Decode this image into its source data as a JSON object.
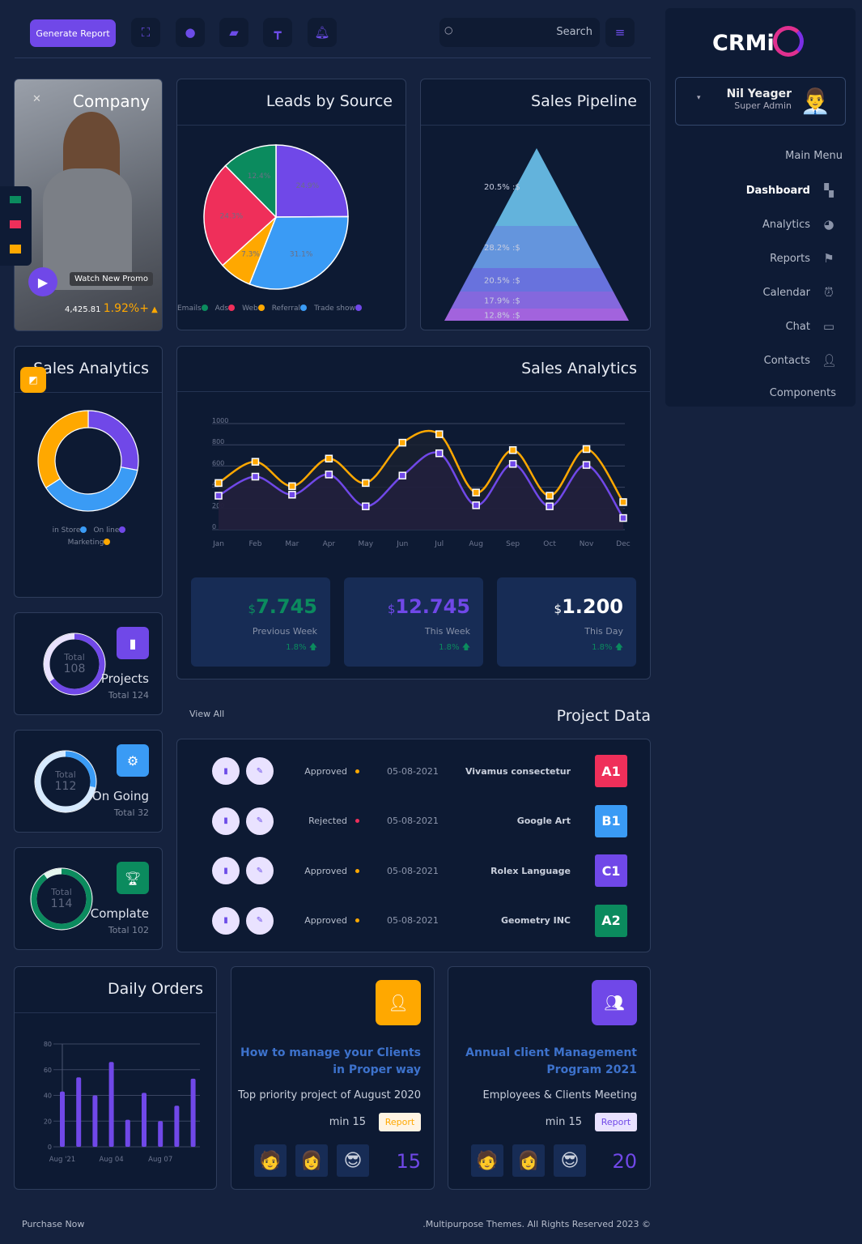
{
  "topbar": {
    "generate_label": "Generate Report",
    "search_placeholder": "Search",
    "icons": [
      "fullscreen-icon",
      "chat-icon",
      "file-icon",
      "layout-icon",
      "bell-icon",
      "menu-icon"
    ]
  },
  "sidebar": {
    "logo": "CRMi",
    "user": {
      "name": "Nil Yeager",
      "role": "Super Admin"
    },
    "section": "Main Menu",
    "items": [
      {
        "label": "Dashboard",
        "icon": "grid-icon",
        "active": true
      },
      {
        "label": "Analytics",
        "icon": "pie-icon"
      },
      {
        "label": "Reports",
        "icon": "flag-icon"
      },
      {
        "label": "Calendar",
        "icon": "alarm-icon"
      },
      {
        "label": "Chat",
        "icon": "message-icon"
      },
      {
        "label": "Contacts",
        "icon": "add-user-icon"
      },
      {
        "label": "Components",
        "icon": ""
      }
    ]
  },
  "promo": {
    "title": "Company",
    "watch_label": "Watch New Promo",
    "value": "4,425.81",
    "change": "1.92%+"
  },
  "leads": {
    "title": "Leads by Source"
  },
  "pipeline": {
    "title": "Sales Pipeline"
  },
  "sales_donut": {
    "title": "Sales Analytics"
  },
  "sales_line": {
    "title": "Sales Analytics"
  },
  "stats": [
    {
      "value": "7.745",
      "currency": "$",
      "label": "Previous Week",
      "change": "1.8%",
      "color": "#0b8b5e"
    },
    {
      "value": "12.745",
      "currency": "$",
      "label": "This Week",
      "change": "1.8%",
      "color": "#7048e8"
    },
    {
      "value": "1.200",
      "currency": "$",
      "label": "This Day",
      "change": "1.8%",
      "color": "#ffffff"
    }
  ],
  "summary": [
    {
      "title": "Projects",
      "total_label": "Total",
      "total": "108",
      "sub": "Total 124",
      "fraction": 0.65,
      "color": "#7048e8",
      "track": "#e9e2ff",
      "icon": "file-icon"
    },
    {
      "title": "On Going",
      "total_label": "Total",
      "total": "112",
      "sub": "Total 32",
      "fraction": 0.28,
      "color": "#3a9bf5",
      "track": "#d6eaff",
      "icon": "gears-icon"
    },
    {
      "title": "Complate",
      "total_label": "Total",
      "total": "114",
      "sub": "Total 102",
      "fraction": 0.9,
      "color": "#0b8b5e",
      "track": "#e5f7ef",
      "icon": "trophy-icon"
    }
  ],
  "project_data": {
    "title": "Project Data",
    "view_all": "View All",
    "rows": [
      {
        "status": "Approved",
        "status_color": "#ffa800",
        "date": "05-08-2021",
        "name": "Vivamus consectetur",
        "code": "A1",
        "color": "#ef2f5a"
      },
      {
        "status": "Rejected",
        "status_color": "#ef2f5a",
        "date": "05-08-2021",
        "name": "Google Art",
        "code": "B1",
        "color": "#3a9bf5"
      },
      {
        "status": "Approved",
        "status_color": "#ffa800",
        "date": "05-08-2021",
        "name": "Rolex Language",
        "code": "C1",
        "color": "#7048e8"
      },
      {
        "status": "Approved",
        "status_color": "#ffa800",
        "date": "05-08-2021",
        "name": "Geometry INC",
        "code": "A2",
        "color": "#0b8b5e"
      }
    ]
  },
  "daily_orders": {
    "title": "Daily Orders"
  },
  "events": [
    {
      "title": "How to manage your Clients in Proper way",
      "desc": "Top priority project of August 2020",
      "time": "min 15",
      "report": "Report",
      "count": "15",
      "color": "#ffa800",
      "icon": "user-icon"
    },
    {
      "title": "Annual client Management Program 2021",
      "desc": "Employees & Clients Meeting",
      "time": "min 15",
      "report": "Report",
      "count": "20",
      "color": "#7048e8",
      "icon": "users-icon"
    }
  ],
  "footer": {
    "left": "Purchase Now",
    "right": ".Multipurpose Themes. All Rights Reserved 2023 ©"
  },
  "chart_data": [
    {
      "type": "pie",
      "title": "Leads by Source",
      "categories": [
        "Trade show",
        "Referral",
        "Web",
        "Ads",
        "Emails"
      ],
      "values": [
        24.9,
        31.1,
        7.3,
        24.3,
        12.4
      ],
      "labels": [
        "24.9%",
        "31.1%",
        "7.3%",
        "24.3%",
        "12.4%"
      ],
      "colors": [
        "#7048e8",
        "#3a9bf5",
        "#ffa800",
        "#ef2f5a",
        "#0b8b5e"
      ],
      "legend": [
        "Emails",
        "Ads",
        "Web",
        "Referral",
        "Trade show"
      ],
      "legend_colors": [
        "#0b8b5e",
        "#ef2f5a",
        "#ffa800",
        "#3a9bf5",
        "#7048e8"
      ],
      "legend_position": "bottom"
    },
    {
      "type": "pyramid",
      "title": "Sales Pipeline",
      "values": [
        20.5,
        28.2,
        20.5,
        17.9,
        12.8
      ],
      "labels": [
        "20.5% :$",
        "28.2% :$",
        "20.5% :$",
        "17.9% :$",
        "12.8% :$"
      ],
      "colors": [
        "#63b3dc",
        "#6495dd",
        "#6872dd",
        "#8468dd",
        "#a263dd"
      ]
    },
    {
      "type": "donut",
      "title": "Sales Analytics",
      "categories": [
        "On line",
        "in Store",
        "Marketing"
      ],
      "values": [
        28,
        38,
        34
      ],
      "colors": [
        "#7048e8",
        "#3a9bf5",
        "#ffa800"
      ],
      "legend": [
        "in Store",
        "On line",
        "Marketing"
      ],
      "legend_colors": [
        "#3a9bf5",
        "#7048e8",
        "#ffa800"
      ],
      "legend_position": "bottom"
    },
    {
      "type": "area",
      "title": "Sales Analytics",
      "categories": [
        "Jan",
        "Feb",
        "Mar",
        "Apr",
        "May",
        "Jun",
        "Jul",
        "Aug",
        "Sep",
        "Oct",
        "Nov",
        "Dec"
      ],
      "ylim": [
        0,
        1000
      ],
      "yticks": [
        0,
        200,
        400,
        600,
        800,
        1000
      ],
      "grid": true,
      "series": [
        {
          "values": [
            440,
            640,
            410,
            670,
            440,
            820,
            900,
            350,
            750,
            320,
            760,
            260
          ],
          "color": "#ffa800"
        },
        {
          "values": [
            320,
            500,
            330,
            520,
            220,
            510,
            720,
            230,
            620,
            220,
            610,
            110
          ],
          "color": "#7048e8"
        }
      ]
    },
    {
      "type": "bar",
      "title": "Daily Orders",
      "values": [
        43,
        54,
        40,
        66,
        21,
        42,
        20,
        32,
        53
      ],
      "xticks": [
        "Aug '21",
        "Aug 04",
        "Aug 07"
      ],
      "ylim": [
        0,
        80
      ],
      "yticks": [
        0,
        20,
        40,
        60,
        80
      ],
      "grid": true,
      "color": "#7048e8"
    }
  ]
}
